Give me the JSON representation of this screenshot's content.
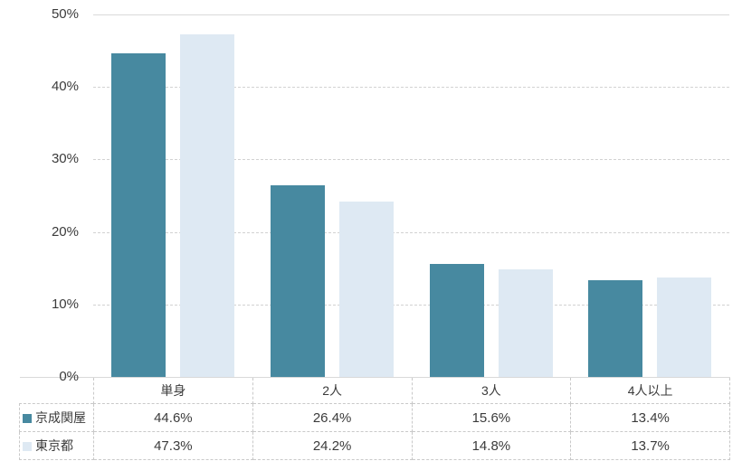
{
  "chart_data": {
    "type": "bar",
    "categories": [
      "単身",
      "2人",
      "3人",
      "4人以上"
    ],
    "series": [
      {
        "name": "京成関屋",
        "color": "#4789A0",
        "values": [
          44.6,
          26.4,
          15.6,
          13.4
        ],
        "labels": [
          "44.6%",
          "26.4%",
          "15.6%",
          "13.4%"
        ]
      },
      {
        "name": "東京都",
        "color": "#DEE9F3",
        "values": [
          47.3,
          24.2,
          14.8,
          13.7
        ],
        "labels": [
          "47.3%",
          "24.2%",
          "14.8%",
          "13.7%"
        ]
      }
    ],
    "title": "",
    "xlabel": "",
    "ylabel": "",
    "ylim": [
      0,
      50
    ],
    "yticks": [
      {
        "value": 0,
        "label": "0%"
      },
      {
        "value": 10,
        "label": "10%"
      },
      {
        "value": 20,
        "label": "20%"
      },
      {
        "value": 30,
        "label": "30%"
      },
      {
        "value": 40,
        "label": "40%"
      },
      {
        "value": 50,
        "label": "50%"
      }
    ],
    "grid": true,
    "legend_position": "table-bottom"
  },
  "colors": {
    "gridline": "#d2d2d2",
    "plot_top_line": "#d9d9d9",
    "table_border": "#c9c9c9",
    "text": "#3b3b3b",
    "background": "#ffffff"
  }
}
